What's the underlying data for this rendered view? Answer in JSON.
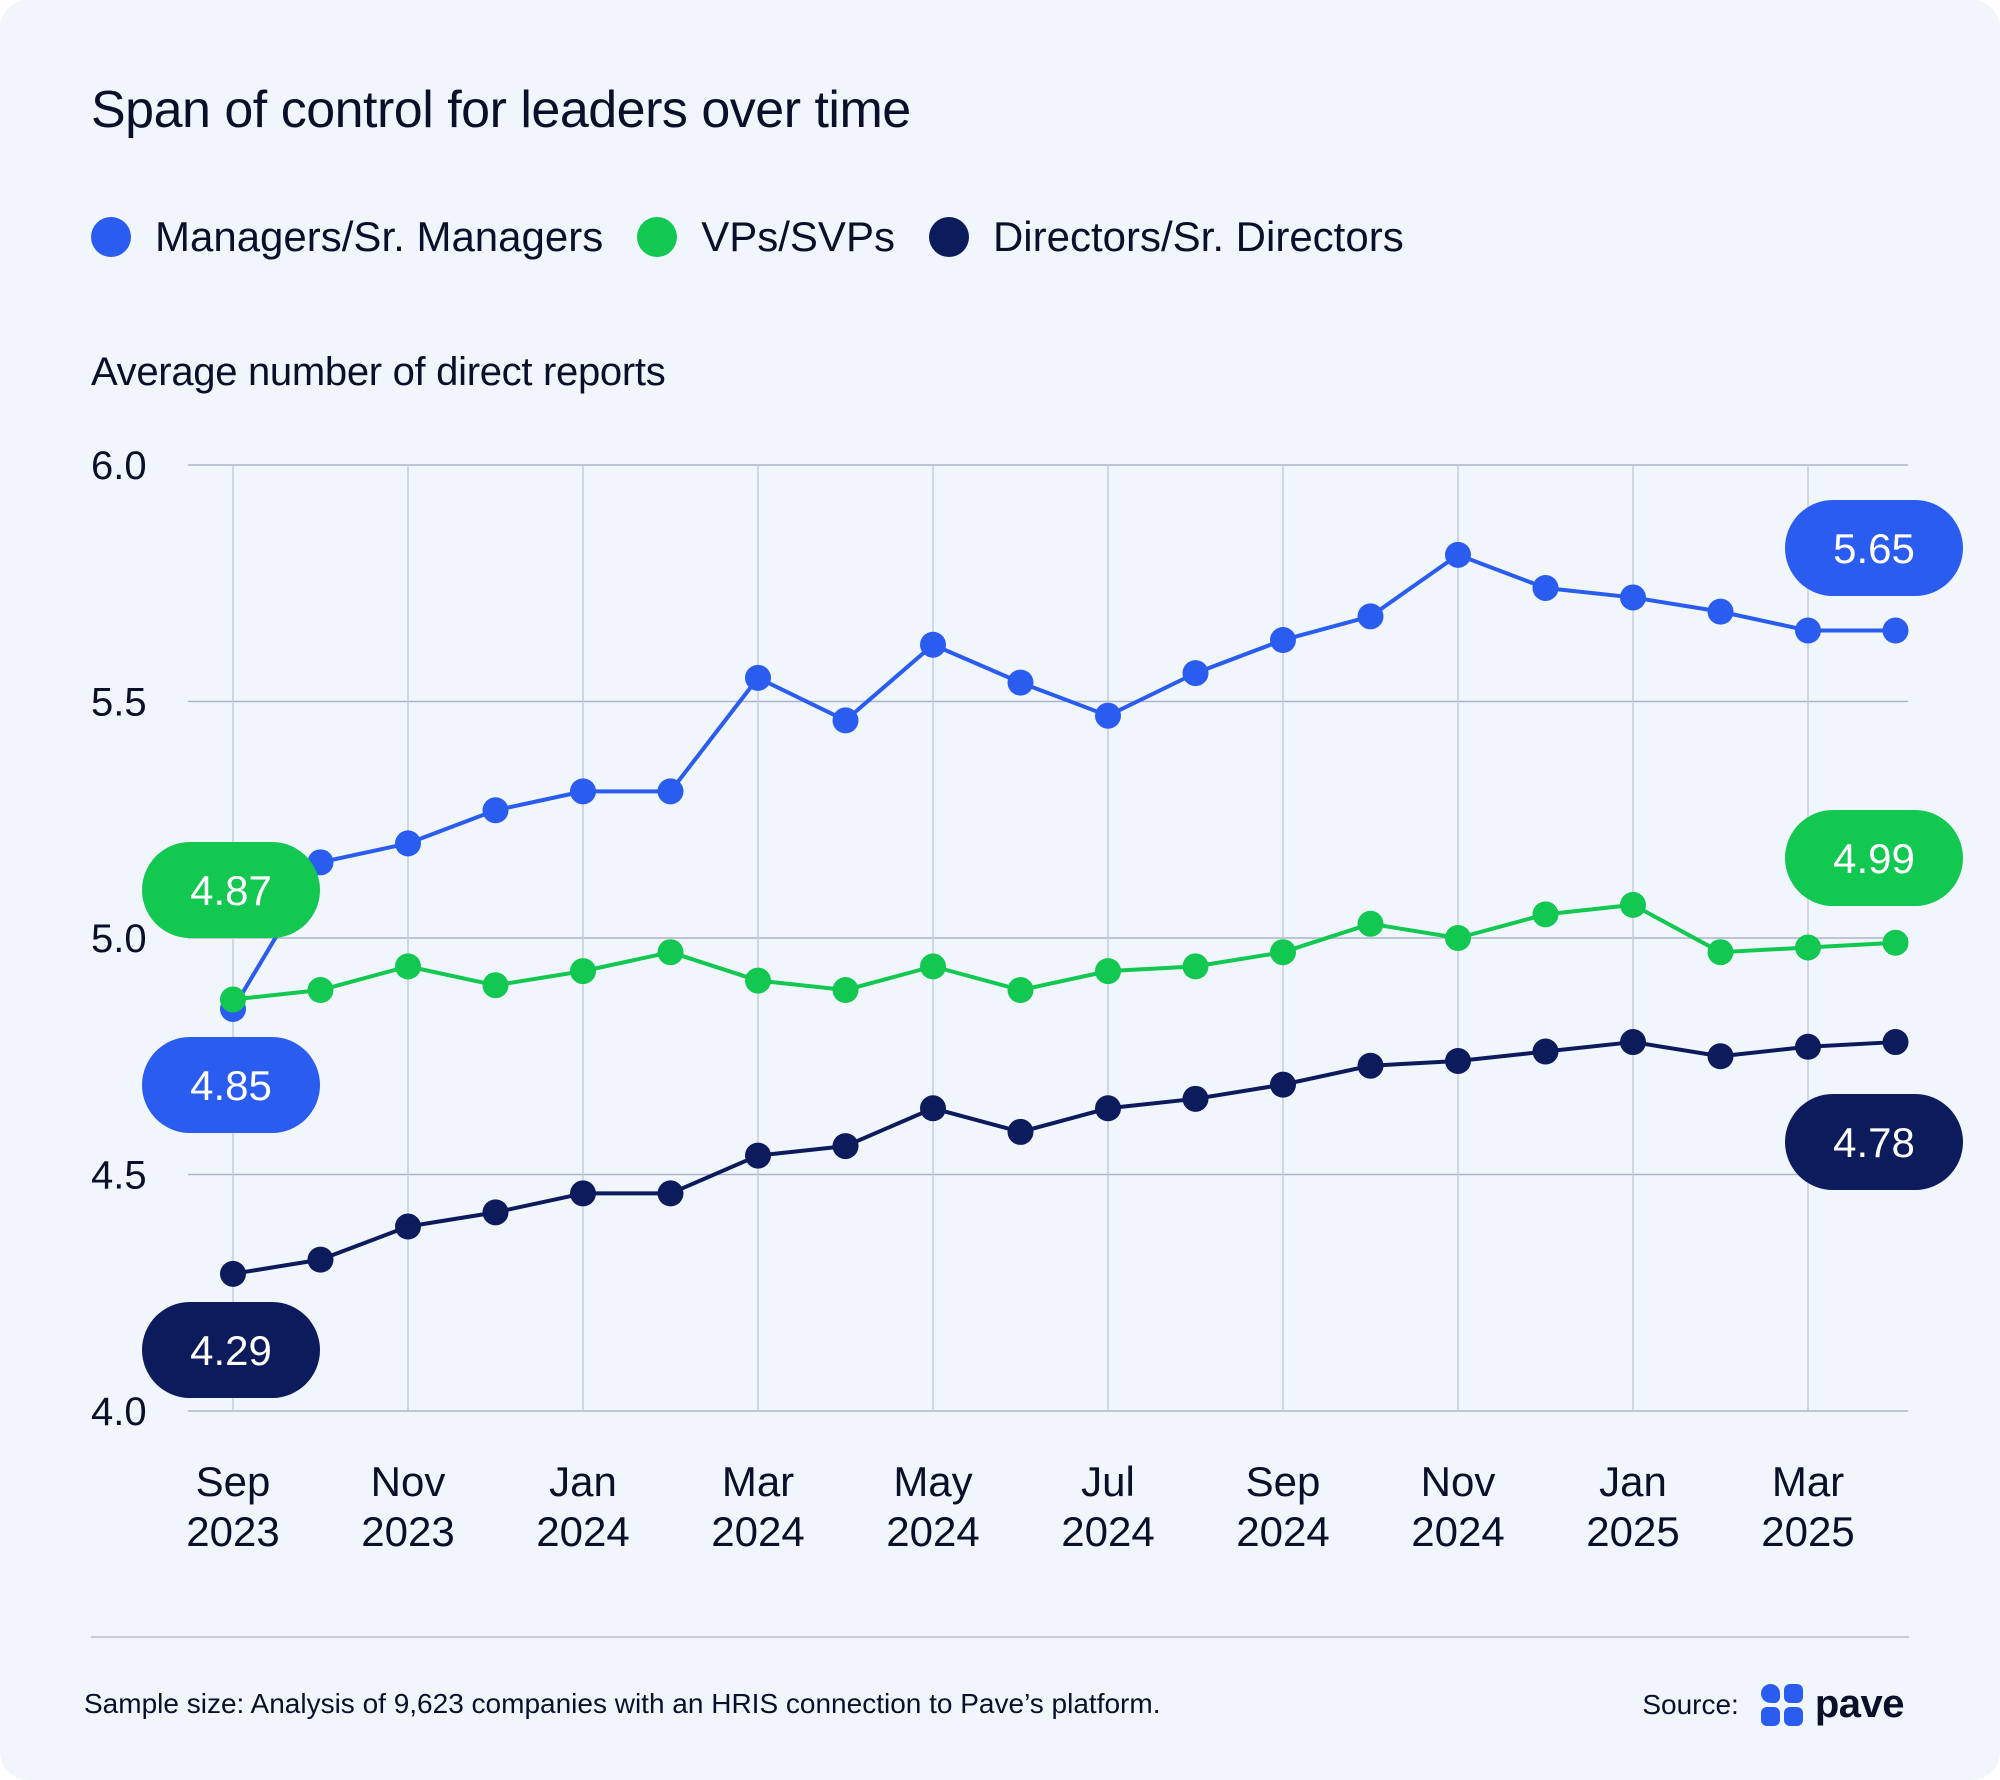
{
  "title": "Span of control for leaders over time",
  "legend": [
    {
      "label": "Managers/Sr. Managers",
      "color": "#2a5cf0"
    },
    {
      "label": "VPs/SVPs",
      "color": "#12c850"
    },
    {
      "label": "Directors/Sr. Directors",
      "color": "#0c1b5c"
    }
  ],
  "footer": {
    "note": "Sample size: Analysis of 9,623 companies with an HRIS connection to Pave’s platform.",
    "source_label": "Source:",
    "logo_text": "pave"
  },
  "chart_data": {
    "type": "line",
    "ylabel": "Average number of direct reports",
    "ylim": [
      4.0,
      6.0
    ],
    "yticks": [
      "6.0",
      "5.5",
      "5.0",
      "4.5",
      "4.0"
    ],
    "grid": true,
    "legend_position": "top",
    "x": [
      "Sep 2023",
      "Oct 2023",
      "Nov 2023",
      "Dec 2023",
      "Jan 2024",
      "Feb 2024",
      "Mar 2024",
      "Apr 2024",
      "May 2024",
      "Jun 2024",
      "Jul 2024",
      "Aug 2024",
      "Sep 2024",
      "Oct 2024",
      "Nov 2024",
      "Dec 2024",
      "Jan 2025",
      "Feb 2025",
      "Mar 2025",
      "Apr 2025"
    ],
    "xtick_labels": [
      [
        "Sep",
        "2023"
      ],
      [
        "Nov",
        "2023"
      ],
      [
        "Jan",
        "2024"
      ],
      [
        "Mar",
        "2024"
      ],
      [
        "May",
        "2024"
      ],
      [
        "Jul",
        "2024"
      ],
      [
        "Sep",
        "2024"
      ],
      [
        "Nov",
        "2024"
      ],
      [
        "Jan",
        "2025"
      ],
      [
        "Mar",
        "2025"
      ]
    ],
    "series": [
      {
        "name": "Managers/Sr. Managers",
        "color": "#2a5cf0",
        "text_color": "#ffffff",
        "values": [
          4.85,
          5.16,
          5.2,
          5.27,
          5.31,
          5.31,
          5.55,
          5.46,
          5.62,
          5.54,
          5.47,
          5.56,
          5.63,
          5.68,
          5.81,
          5.74,
          5.72,
          5.69,
          5.65,
          5.65
        ],
        "start_label": "4.85",
        "end_label": "5.65"
      },
      {
        "name": "VPs/SVPs",
        "color": "#12c850",
        "text_color": "#ffffff",
        "values": [
          4.87,
          4.89,
          4.94,
          4.9,
          4.93,
          4.97,
          4.91,
          4.89,
          4.94,
          4.89,
          4.93,
          4.94,
          4.97,
          5.03,
          5.0,
          5.05,
          5.07,
          4.97,
          4.98,
          4.99
        ],
        "start_label": "4.87",
        "end_label": "4.99"
      },
      {
        "name": "Directors/Sr. Directors",
        "color": "#0c1b5c",
        "text_color": "#ffffff",
        "values": [
          4.29,
          4.32,
          4.39,
          4.42,
          4.46,
          4.46,
          4.54,
          4.56,
          4.64,
          4.59,
          4.64,
          4.66,
          4.69,
          4.73,
          4.74,
          4.76,
          4.78,
          4.75,
          4.77,
          4.78
        ],
        "start_label": "4.29",
        "end_label": "4.78"
      }
    ]
  }
}
